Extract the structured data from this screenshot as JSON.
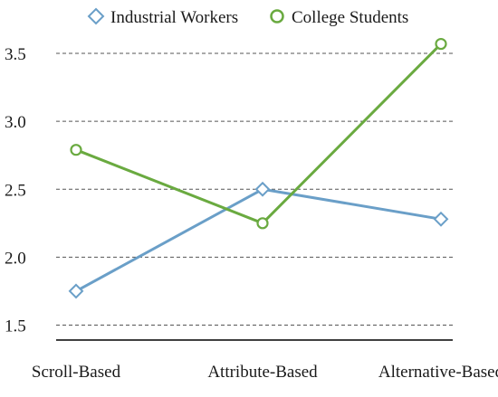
{
  "chart_data": {
    "type": "line",
    "title": "",
    "xlabel": "",
    "ylabel": "",
    "categories": [
      "Scroll-Based",
      "Attribute-Based",
      "Alternative-Based"
    ],
    "series": [
      {
        "name": "Industrial Workers",
        "values": [
          1.75,
          2.5,
          2.28
        ],
        "color": "#6a9fc8",
        "marker": "diamond"
      },
      {
        "name": "College Students",
        "values": [
          2.79,
          2.25,
          3.57
        ],
        "color": "#6aaa40",
        "marker": "circle"
      }
    ],
    "yticks": [
      "1.5",
      "2.0",
      "2.5",
      "3.0",
      "3.5"
    ],
    "ylim": [
      1.39,
      3.76
    ],
    "grid": true,
    "legend_position": "top"
  }
}
